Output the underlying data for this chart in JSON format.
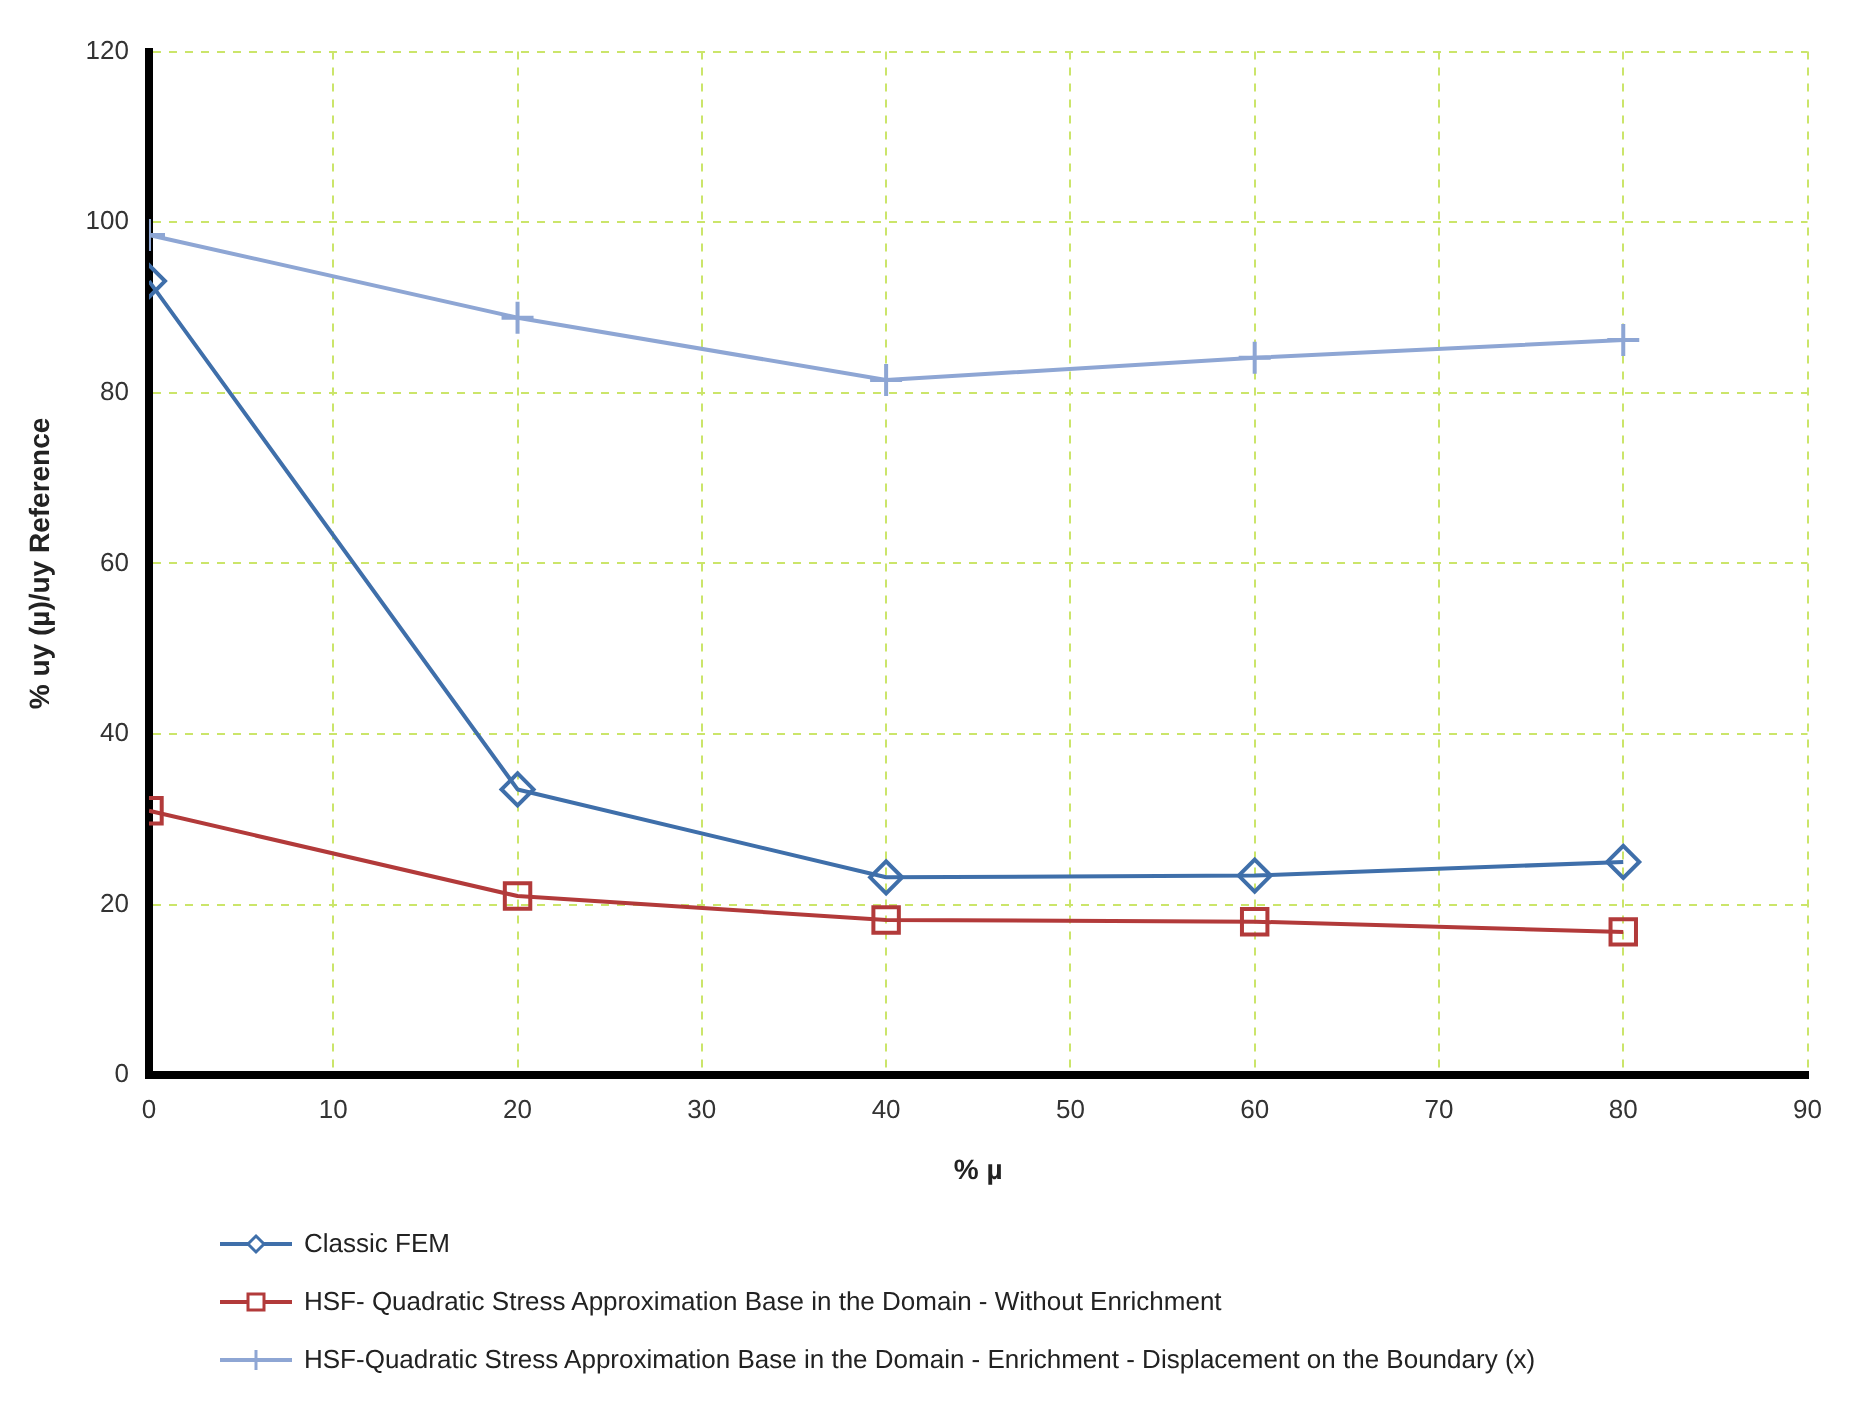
{
  "chart_data": {
    "type": "line",
    "xlabel": "% µ",
    "ylabel": "% uy (µ)/uy Reference",
    "xlim": [
      0,
      90
    ],
    "xticks": [
      0,
      10,
      20,
      30,
      40,
      50,
      60,
      70,
      80,
      90
    ],
    "ylim": [
      0,
      120
    ],
    "yticks": [
      0,
      20,
      40,
      60,
      80,
      100,
      120
    ],
    "grid": true,
    "legend": "bottom",
    "series": [
      {
        "name": "Classic FEM",
        "color": "#3f6faa",
        "marker": "diamond",
        "x": [
          0,
          20,
          40,
          60,
          80
        ],
        "values": [
          93.1,
          33.5,
          23.2,
          23.4,
          25.0
        ]
      },
      {
        "name": "HSF- Quadratic Stress Approximation Base in the Domain - Without Enrichment",
        "color": "#b23a3a",
        "marker": "square",
        "x": [
          0,
          20,
          40,
          60,
          80
        ],
        "values": [
          31,
          21,
          18.2,
          18,
          16.8
        ]
      },
      {
        "name": "HSF-Quadratic Stress Approximation Base in the Domain - Enrichment - Displacement on the Boundary (x)",
        "color": "#8ea6d4",
        "marker": "cross",
        "x": [
          0,
          20,
          40,
          60,
          80
        ],
        "values": [
          98.5,
          88.8,
          81.5,
          84.1,
          86.2
        ]
      }
    ]
  }
}
